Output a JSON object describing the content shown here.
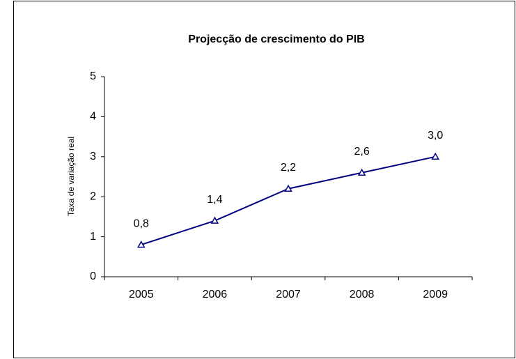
{
  "chart_data": {
    "type": "line",
    "title": "Projecção de crescimento do PIB",
    "y_label": "Taxa de variação real",
    "categories": [
      "2005",
      "2006",
      "2007",
      "2008",
      "2009"
    ],
    "series": [
      {
        "name": "PIB",
        "color": "#000080",
        "values": [
          0.8,
          1.4,
          2.2,
          2.6,
          3.0
        ],
        "value_labels": [
          "0,8",
          "1,4",
          "2,2",
          "2,6",
          "3,0"
        ]
      }
    ],
    "ylim": [
      0,
      5
    ],
    "yticks": [
      0,
      1,
      2,
      3,
      4,
      5
    ],
    "grid": false,
    "marker": "triangle"
  }
}
